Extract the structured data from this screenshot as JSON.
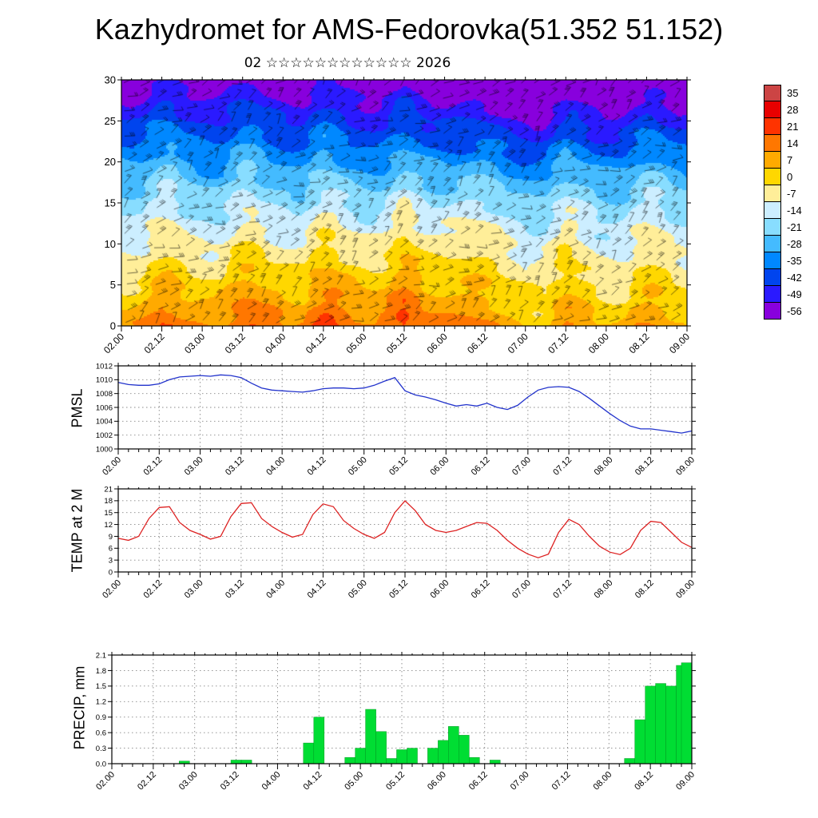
{
  "title": "Kazhydromet for AMS-Fedorovka(51.352 51.152)",
  "subtitle": "02 ☆☆☆☆☆☆☆☆☆☆☆☆ 2026",
  "time_axis": {
    "labels": [
      "02.00",
      "02.12",
      "03.00",
      "03.12",
      "04.00",
      "04.12",
      "05.00",
      "05.12",
      "06.00",
      "06.12",
      "07.00",
      "07.12",
      "08.00",
      "08.12",
      "09.00"
    ],
    "total_hours": 168,
    "minor_step_hours": 3,
    "major_step_hours": 12
  },
  "chart_data": [
    {
      "type": "heatmap",
      "name": "temperature-cross-section",
      "description": "Vertical temperature cross-section (height 0-30) with wind barbs; warm orange/red near surface, cold blue/purple aloft",
      "y_tick_labels": [
        "0",
        "5",
        "10",
        "15",
        "20",
        "25",
        "30"
      ],
      "y_range": [
        0,
        30
      ],
      "levels": {
        "min": -56,
        "max": 35,
        "step": 7
      },
      "colorbar": {
        "labels": [
          "35",
          "28",
          "21",
          "14",
          "7",
          "0",
          "-7",
          "-14",
          "-21",
          "-28",
          "-35",
          "-42",
          "-49",
          "-56"
        ],
        "colors_top_to_bottom": [
          "#cc4444",
          "#e80000",
          "#ff3300",
          "#ff7700",
          "#ffaa00",
          "#ffd700",
          "#ffee99",
          "#cceeff",
          "#88ddff",
          "#44bbff",
          "#0088ff",
          "#0044ee",
          "#2a1aff",
          "#8800dd"
        ]
      }
    },
    {
      "type": "line",
      "name": "pmsl",
      "ylabel": "PMSL",
      "color": "#2233cc",
      "ylim": [
        1000,
        1012
      ],
      "y_ticks": [
        "1000",
        "1002",
        "1004",
        "1006",
        "1008",
        "1010",
        "1012"
      ],
      "values": [
        1009.6,
        1009.3,
        1009.2,
        1009.2,
        1009.4,
        1010.0,
        1010.4,
        1010.5,
        1010.6,
        1010.5,
        1010.7,
        1010.6,
        1010.3,
        1009.5,
        1008.8,
        1008.5,
        1008.4,
        1008.3,
        1008.2,
        1008.4,
        1008.7,
        1008.8,
        1008.8,
        1008.7,
        1008.8,
        1009.2,
        1009.8,
        1010.3,
        1008.4,
        1007.8,
        1007.5,
        1007.1,
        1006.6,
        1006.2,
        1006.4,
        1006.2,
        1006.6,
        1006.0,
        1005.7,
        1006.3,
        1007.5,
        1008.5,
        1008.9,
        1009.0,
        1008.9,
        1008.3,
        1007.3,
        1006.2,
        1005.1,
        1004.1,
        1003.3,
        1002.9,
        1002.9,
        1002.7,
        1002.5,
        1002.3,
        1002.6
      ]
    },
    {
      "type": "line",
      "name": "temp-2m",
      "ylabel": "TEMP at 2 M",
      "color": "#dd2222",
      "ylim": [
        0,
        21
      ],
      "y_ticks": [
        "0",
        "3",
        "6",
        "9",
        "12",
        "15",
        "18",
        "21"
      ],
      "values": [
        8.5,
        8.0,
        9.0,
        13.5,
        16.3,
        16.5,
        12.5,
        10.5,
        9.5,
        8.3,
        9.0,
        14.0,
        17.3,
        17.5,
        13.5,
        11.5,
        10.0,
        8.8,
        9.5,
        14.5,
        17.2,
        16.5,
        13.0,
        11.0,
        9.5,
        8.5,
        10.0,
        15.0,
        18.0,
        15.5,
        12.0,
        10.5,
        10.0,
        10.5,
        11.5,
        12.5,
        12.3,
        10.5,
        8.0,
        6.0,
        4.5,
        3.6,
        4.5,
        10.0,
        13.3,
        12.0,
        9.0,
        6.5,
        5.0,
        4.4,
        6.0,
        10.5,
        12.8,
        12.5,
        10.0,
        7.5,
        6.2
      ]
    },
    {
      "type": "bar",
      "name": "precip",
      "ylabel": "PRECIP, mm",
      "color": "#00dd33",
      "ylim": [
        0,
        2.1
      ],
      "y_ticks": [
        "0.0",
        "0.3",
        "0.6",
        "0.9",
        "1.2",
        "1.5",
        "1.8",
        "2.1"
      ],
      "values": [
        0,
        0,
        0,
        0,
        0,
        0,
        0,
        0.05,
        0,
        0,
        0,
        0,
        0.07,
        0.07,
        0,
        0,
        0,
        0,
        0,
        0.4,
        0.9,
        0,
        0,
        0.12,
        0.3,
        1.05,
        0.62,
        0.1,
        0.27,
        0.3,
        0,
        0.3,
        0.45,
        0.72,
        0.55,
        0.12,
        0,
        0.07,
        0,
        0,
        0,
        0,
        0,
        0,
        0,
        0,
        0,
        0,
        0,
        0,
        0.1,
        0.85,
        1.5,
        1.55,
        1.5,
        1.9,
        1.95
      ]
    }
  ]
}
